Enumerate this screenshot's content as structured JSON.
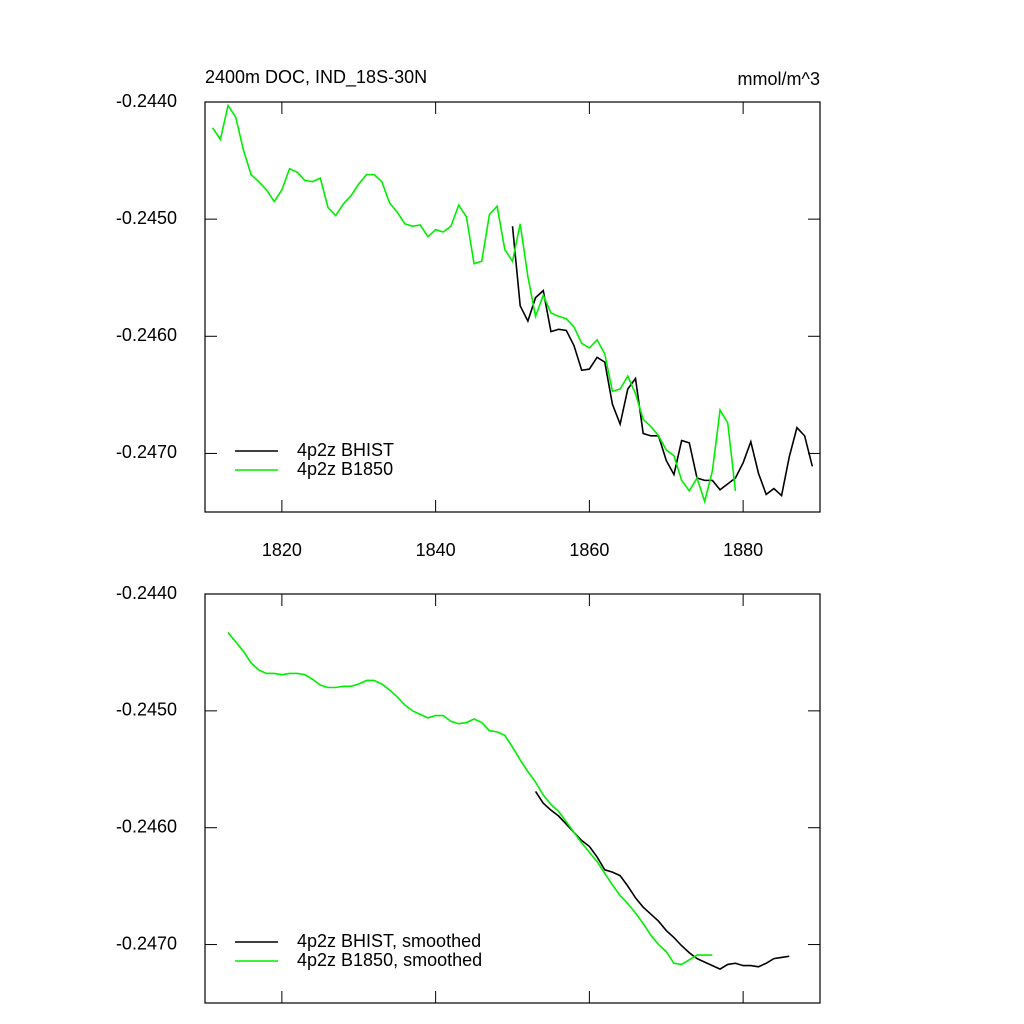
{
  "chart_data": [
    {
      "type": "line",
      "title": "2400m DOC, IND_18S-30N",
      "units": "mmol/m^3",
      "xlim": [
        1810,
        1890
      ],
      "xticks": [
        1820,
        1840,
        1860,
        1880
      ],
      "xtick_labels": true,
      "ylim": [
        -0.2475,
        -0.244
      ],
      "yticks": [
        {
          "value": -0.244,
          "label": "-0.2440"
        },
        {
          "value": -0.245,
          "label": "-0.2450"
        },
        {
          "value": -0.246,
          "label": "-0.2460"
        },
        {
          "value": -0.247,
          "label": "-0.2470"
        }
      ],
      "legend": "bottom-left",
      "series": [
        {
          "name": "4p2z BHIST",
          "color": "#000000",
          "x": [
            1850,
            1851,
            1852,
            1853,
            1854,
            1855,
            1856,
            1857,
            1858,
            1859,
            1860,
            1861,
            1862,
            1863,
            1864,
            1865,
            1866,
            1867,
            1868,
            1869,
            1870,
            1871,
            1872,
            1873,
            1874,
            1875,
            1876,
            1877,
            1878,
            1879,
            1880,
            1881,
            1882,
            1883,
            1884,
            1885,
            1886,
            1887,
            1888,
            1889
          ],
          "values": [
            -0.24506,
            -0.24574,
            -0.24587,
            -0.24567,
            -0.24561,
            -0.24596,
            -0.24594,
            -0.24595,
            -0.24608,
            -0.24629,
            -0.24628,
            -0.24618,
            -0.24622,
            -0.24658,
            -0.24675,
            -0.24645,
            -0.24636,
            -0.24683,
            -0.24685,
            -0.24685,
            -0.24706,
            -0.24718,
            -0.24689,
            -0.24691,
            -0.24721,
            -0.24723,
            -0.24723,
            -0.24731,
            -0.24726,
            -0.24721,
            -0.24708,
            -0.2469,
            -0.24717,
            -0.24735,
            -0.2473,
            -0.24736,
            -0.24703,
            -0.24678,
            -0.24685,
            -0.24711
          ]
        },
        {
          "name": "4p2z B1850",
          "color": "#00ee00",
          "x": [
            1811,
            1812,
            1813,
            1814,
            1815,
            1816,
            1817,
            1818,
            1819,
            1820,
            1821,
            1822,
            1823,
            1824,
            1825,
            1826,
            1827,
            1828,
            1829,
            1830,
            1831,
            1832,
            1833,
            1834,
            1835,
            1836,
            1837,
            1838,
            1839,
            1840,
            1841,
            1842,
            1843,
            1844,
            1845,
            1846,
            1847,
            1848,
            1849,
            1850,
            1851,
            1852,
            1853,
            1854,
            1855,
            1856,
            1857,
            1858,
            1859,
            1860,
            1861,
            1862,
            1863,
            1864,
            1865,
            1866,
            1867,
            1868,
            1869,
            1870,
            1871,
            1872,
            1873,
            1874,
            1875,
            1876,
            1877,
            1878,
            1879
          ],
          "values": [
            -0.24422,
            -0.24432,
            -0.24403,
            -0.24413,
            -0.24441,
            -0.24462,
            -0.24468,
            -0.24475,
            -0.24485,
            -0.24475,
            -0.24457,
            -0.2446,
            -0.24467,
            -0.24468,
            -0.24465,
            -0.2449,
            -0.24497,
            -0.24487,
            -0.2448,
            -0.2447,
            -0.24462,
            -0.24462,
            -0.24468,
            -0.24486,
            -0.24494,
            -0.24504,
            -0.24506,
            -0.24505,
            -0.24515,
            -0.24509,
            -0.24511,
            -0.24506,
            -0.24488,
            -0.24498,
            -0.24538,
            -0.24536,
            -0.24496,
            -0.24489,
            -0.24526,
            -0.24536,
            -0.24504,
            -0.24549,
            -0.24583,
            -0.24565,
            -0.2458,
            -0.24583,
            -0.24585,
            -0.24592,
            -0.24606,
            -0.2461,
            -0.24603,
            -0.24615,
            -0.24647,
            -0.24645,
            -0.24634,
            -0.24649,
            -0.24671,
            -0.24677,
            -0.24685,
            -0.24697,
            -0.24702,
            -0.24723,
            -0.24732,
            -0.24721,
            -0.24741,
            -0.24715,
            -0.24663,
            -0.24674,
            -0.24732
          ]
        }
      ]
    },
    {
      "type": "line",
      "xlim": [
        1810,
        1890
      ],
      "xticks": [
        1820,
        1840,
        1860,
        1880
      ],
      "xtick_labels": false,
      "ylim": [
        -0.2475,
        -0.244
      ],
      "yticks": [
        {
          "value": -0.244,
          "label": "-0.2440"
        },
        {
          "value": -0.245,
          "label": "-0.2450"
        },
        {
          "value": -0.246,
          "label": "-0.2460"
        },
        {
          "value": -0.247,
          "label": "-0.2470"
        }
      ],
      "legend": "bottom-left",
      "series": [
        {
          "name": "4p2z BHIST, smoothed",
          "color": "#000000",
          "x": [
            1853,
            1854,
            1855,
            1856,
            1857,
            1858,
            1859,
            1860,
            1861,
            1862,
            1863,
            1864,
            1865,
            1866,
            1867,
            1868,
            1869,
            1870,
            1871,
            1872,
            1873,
            1874,
            1875,
            1876,
            1877,
            1878,
            1879,
            1880,
            1881,
            1882,
            1883,
            1884,
            1885,
            1886
          ],
          "values": [
            -0.24569,
            -0.24579,
            -0.24585,
            -0.2459,
            -0.24597,
            -0.24604,
            -0.24611,
            -0.24616,
            -0.24625,
            -0.24636,
            -0.24638,
            -0.24641,
            -0.2465,
            -0.2466,
            -0.24668,
            -0.24674,
            -0.2468,
            -0.24688,
            -0.24694,
            -0.24701,
            -0.24707,
            -0.24712,
            -0.24715,
            -0.24718,
            -0.24721,
            -0.24717,
            -0.24716,
            -0.24718,
            -0.24718,
            -0.24719,
            -0.24716,
            -0.24712,
            -0.24711,
            -0.2471
          ]
        },
        {
          "name": "4p2z B1850, smoothed",
          "color": "#00ee00",
          "x": [
            1813,
            1814,
            1815,
            1816,
            1817,
            1818,
            1819,
            1820,
            1821,
            1822,
            1823,
            1824,
            1825,
            1826,
            1827,
            1828,
            1829,
            1830,
            1831,
            1832,
            1833,
            1834,
            1835,
            1836,
            1837,
            1838,
            1839,
            1840,
            1841,
            1842,
            1843,
            1844,
            1845,
            1846,
            1847,
            1848,
            1849,
            1850,
            1851,
            1852,
            1853,
            1854,
            1855,
            1856,
            1857,
            1858,
            1859,
            1860,
            1861,
            1862,
            1863,
            1864,
            1865,
            1866,
            1867,
            1868,
            1869,
            1870,
            1871,
            1872,
            1873,
            1874,
            1875,
            1876
          ],
          "values": [
            -0.24433,
            -0.24441,
            -0.24449,
            -0.24459,
            -0.24465,
            -0.24468,
            -0.24468,
            -0.24469,
            -0.24468,
            -0.24468,
            -0.24469,
            -0.24473,
            -0.24478,
            -0.2448,
            -0.2448,
            -0.24479,
            -0.24479,
            -0.24477,
            -0.24474,
            -0.24474,
            -0.24477,
            -0.24482,
            -0.24488,
            -0.24495,
            -0.245,
            -0.24503,
            -0.24506,
            -0.24504,
            -0.24504,
            -0.24509,
            -0.24511,
            -0.2451,
            -0.24507,
            -0.2451,
            -0.24517,
            -0.24518,
            -0.24521,
            -0.24531,
            -0.24542,
            -0.24552,
            -0.24561,
            -0.24572,
            -0.2458,
            -0.24586,
            -0.24595,
            -0.24604,
            -0.24613,
            -0.24621,
            -0.24629,
            -0.24639,
            -0.24649,
            -0.24658,
            -0.24665,
            -0.24673,
            -0.24682,
            -0.24692,
            -0.247,
            -0.24706,
            -0.24716,
            -0.24717,
            -0.24713,
            -0.24709,
            -0.24709,
            -0.24709
          ]
        }
      ]
    }
  ]
}
